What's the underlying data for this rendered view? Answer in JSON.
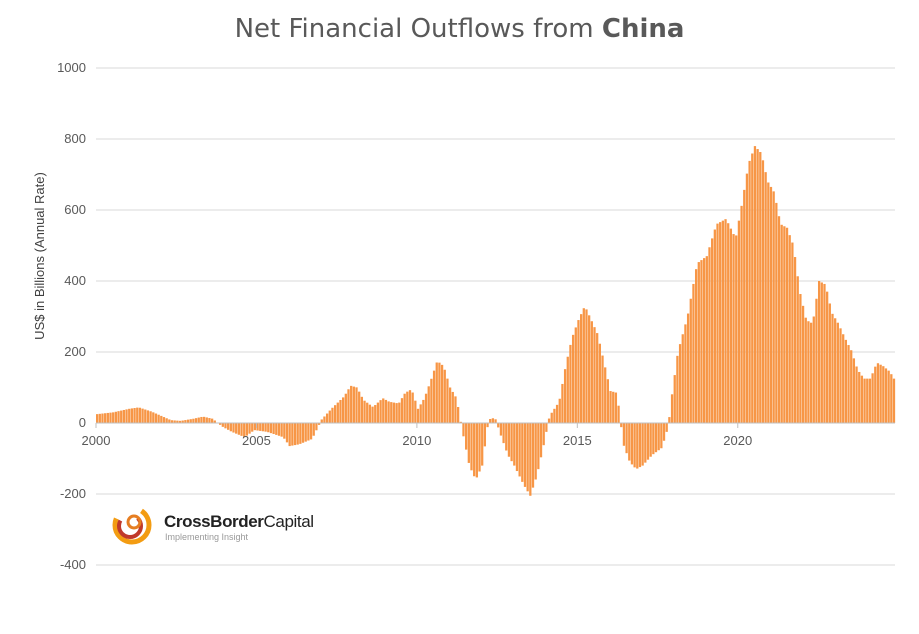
{
  "chart_data": {
    "type": "bar",
    "title_prefix": "Net Financial Outflows from ",
    "title_bold": "China",
    "ylabel": "US$ in Billions (Annual Rate)",
    "xlabel": "",
    "ylim": [
      -400,
      1000
    ],
    "yticks": [
      -400,
      -200,
      0,
      200,
      400,
      600,
      800,
      1000
    ],
    "xticks": [
      2000,
      2005,
      2010,
      2015,
      2020
    ],
    "xlim": [
      2000,
      2024.9
    ],
    "grid": true,
    "legend": "none",
    "bar_color": "#F79646",
    "series": [
      {
        "points": [
          [
            2000.0,
            25
          ],
          [
            2000.5,
            30
          ],
          [
            2001.0,
            40
          ],
          [
            2001.3,
            44
          ],
          [
            2001.7,
            32
          ],
          [
            2002.0,
            20
          ],
          [
            2002.3,
            8
          ],
          [
            2002.6,
            6
          ],
          [
            2003.0,
            12
          ],
          [
            2003.3,
            18
          ],
          [
            2003.6,
            12
          ],
          [
            2003.9,
            -10
          ],
          [
            2004.2,
            -25
          ],
          [
            2004.6,
            -40
          ],
          [
            2004.9,
            -20
          ],
          [
            2005.3,
            -25
          ],
          [
            2005.8,
            -40
          ],
          [
            2006.0,
            -65
          ],
          [
            2006.3,
            -60
          ],
          [
            2006.7,
            -45
          ],
          [
            2007.0,
            10
          ],
          [
            2007.3,
            40
          ],
          [
            2007.7,
            75
          ],
          [
            2007.9,
            105
          ],
          [
            2008.1,
            100
          ],
          [
            2008.3,
            65
          ],
          [
            2008.6,
            45
          ],
          [
            2008.9,
            70
          ],
          [
            2009.1,
            60
          ],
          [
            2009.4,
            55
          ],
          [
            2009.6,
            85
          ],
          [
            2009.8,
            95
          ],
          [
            2010.0,
            40
          ],
          [
            2010.2,
            70
          ],
          [
            2010.4,
            120
          ],
          [
            2010.6,
            175
          ],
          [
            2010.8,
            160
          ],
          [
            2011.0,
            100
          ],
          [
            2011.2,
            70
          ],
          [
            2011.4,
            -30
          ],
          [
            2011.6,
            -120
          ],
          [
            2011.8,
            -160
          ],
          [
            2012.0,
            -120
          ],
          [
            2012.2,
            10
          ],
          [
            2012.4,
            15
          ],
          [
            2012.6,
            -40
          ],
          [
            2012.8,
            -90
          ],
          [
            2013.0,
            -120
          ],
          [
            2013.3,
            -175
          ],
          [
            2013.5,
            -205
          ],
          [
            2013.7,
            -150
          ],
          [
            2013.9,
            -70
          ],
          [
            2014.1,
            20
          ],
          [
            2014.4,
            60
          ],
          [
            2014.6,
            160
          ],
          [
            2014.8,
            240
          ],
          [
            2015.0,
            290
          ],
          [
            2015.2,
            330
          ],
          [
            2015.4,
            290
          ],
          [
            2015.6,
            250
          ],
          [
            2015.8,
            170
          ],
          [
            2016.0,
            90
          ],
          [
            2016.2,
            85
          ],
          [
            2016.4,
            -60
          ],
          [
            2016.6,
            -110
          ],
          [
            2016.8,
            -130
          ],
          [
            2017.0,
            -120
          ],
          [
            2017.3,
            -90
          ],
          [
            2017.6,
            -70
          ],
          [
            2017.8,
            -10
          ],
          [
            2017.9,
            70
          ],
          [
            2018.1,
            200
          ],
          [
            2018.4,
            300
          ],
          [
            2018.7,
            450
          ],
          [
            2019.0,
            470
          ],
          [
            2019.3,
            560
          ],
          [
            2019.6,
            575
          ],
          [
            2019.9,
            520
          ],
          [
            2020.1,
            620
          ],
          [
            2020.3,
            730
          ],
          [
            2020.5,
            780
          ],
          [
            2020.7,
            760
          ],
          [
            2020.9,
            680
          ],
          [
            2021.1,
            650
          ],
          [
            2021.3,
            560
          ],
          [
            2021.5,
            550
          ],
          [
            2021.7,
            500
          ],
          [
            2021.9,
            370
          ],
          [
            2022.1,
            290
          ],
          [
            2022.3,
            280
          ],
          [
            2022.5,
            400
          ],
          [
            2022.7,
            390
          ],
          [
            2022.9,
            310
          ],
          [
            2023.1,
            280
          ],
          [
            2023.3,
            240
          ],
          [
            2023.5,
            205
          ],
          [
            2023.7,
            150
          ],
          [
            2023.9,
            125
          ],
          [
            2024.1,
            125
          ],
          [
            2024.3,
            170
          ],
          [
            2024.5,
            160
          ],
          [
            2024.7,
            145
          ],
          [
            2024.9,
            115
          ]
        ]
      }
    ]
  },
  "logo": {
    "name_bold": "CrossBorder",
    "name_regular": "Capital",
    "tagline": "Implementing Insight"
  }
}
